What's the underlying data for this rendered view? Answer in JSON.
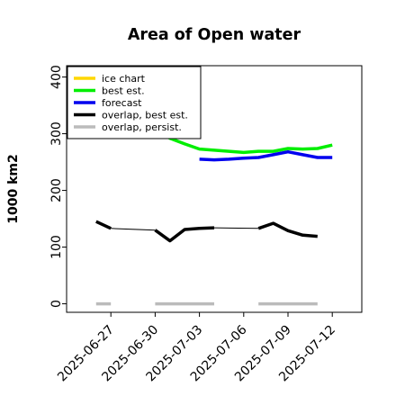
{
  "chart_data": {
    "type": "line",
    "title": "Area of Open water",
    "ylabel": "1000 km2",
    "xlabel": "",
    "ylim": [
      -15,
      420
    ],
    "xlim": [
      "2025-06-24",
      "2025-07-14"
    ],
    "yticks": [
      0,
      100,
      200,
      300,
      400
    ],
    "xticks": [
      {
        "date": "2025-06-27",
        "label": "2025-06-27",
        "color": "#000000"
      },
      {
        "date": "2025-06-30",
        "label": "2025-06-30",
        "color": "#000000"
      },
      {
        "date": "2025-07-03",
        "label": "2025-07-03",
        "color": "#228b22"
      },
      {
        "date": "2025-07-06",
        "label": "2025-07-06",
        "color": "#000000"
      },
      {
        "date": "2025-07-09",
        "label": "2025-07-09",
        "color": "#000000"
      },
      {
        "date": "2025-07-12",
        "label": "2025-07-12",
        "color": "#000000"
      }
    ],
    "legend_position": "top-left",
    "grid": false,
    "series": [
      {
        "name": "ice chart",
        "color": "#ffd700",
        "points": []
      },
      {
        "name": "best est.",
        "color": "#00ee00",
        "segments": [
          [
            {
              "x": "2025-06-30",
              "y": 305
            },
            {
              "x": "2025-07-01",
              "y": 292
            },
            {
              "x": "2025-07-02",
              "y": 282
            },
            {
              "x": "2025-07-03",
              "y": 273
            },
            {
              "x": "2025-07-04",
              "y": 271
            },
            {
              "x": "2025-07-05",
              "y": 269
            },
            {
              "x": "2025-07-06",
              "y": 267
            },
            {
              "x": "2025-07-07",
              "y": 269
            },
            {
              "x": "2025-07-08",
              "y": 269
            },
            {
              "x": "2025-07-09",
              "y": 274
            },
            {
              "x": "2025-07-10",
              "y": 273
            },
            {
              "x": "2025-07-11",
              "y": 274
            },
            {
              "x": "2025-07-12",
              "y": 280
            }
          ]
        ]
      },
      {
        "name": "forecast",
        "color": "#0000ee",
        "segments": [
          [
            {
              "x": "2025-07-03",
              "y": 255
            },
            {
              "x": "2025-07-04",
              "y": 254
            },
            {
              "x": "2025-07-05",
              "y": 255
            },
            {
              "x": "2025-07-06",
              "y": 257
            },
            {
              "x": "2025-07-07",
              "y": 258
            },
            {
              "x": "2025-07-08",
              "y": 263
            },
            {
              "x": "2025-07-09",
              "y": 268
            },
            {
              "x": "2025-07-10",
              "y": 263
            },
            {
              "x": "2025-07-11",
              "y": 258
            },
            {
              "x": "2025-07-12",
              "y": 258
            }
          ]
        ]
      },
      {
        "name": "overlap, best est.",
        "color": "#000000",
        "segments": [
          [
            {
              "x": "2025-06-26",
              "y": 145
            },
            {
              "x": "2025-06-27",
              "y": 133
            }
          ],
          [
            {
              "x": "2025-06-30",
              "y": 130
            },
            {
              "x": "2025-07-01",
              "y": 111
            },
            {
              "x": "2025-07-02",
              "y": 131
            },
            {
              "x": "2025-07-03",
              "y": 133
            },
            {
              "x": "2025-07-04",
              "y": 134
            }
          ],
          [
            {
              "x": "2025-07-07",
              "y": 133
            },
            {
              "x": "2025-07-08",
              "y": 142
            },
            {
              "x": "2025-07-09",
              "y": 129
            },
            {
              "x": "2025-07-10",
              "y": 121
            },
            {
              "x": "2025-07-11",
              "y": 119
            }
          ]
        ],
        "connectors": [
          [
            {
              "x": "2025-06-27",
              "y": 133
            },
            {
              "x": "2025-06-30",
              "y": 130
            }
          ],
          [
            {
              "x": "2025-07-04",
              "y": 134
            },
            {
              "x": "2025-07-07",
              "y": 133
            }
          ]
        ]
      },
      {
        "name": "overlap, persist.",
        "color": "#bbbbbb",
        "segments": [
          [
            {
              "x": "2025-06-26",
              "y": 0
            },
            {
              "x": "2025-06-27",
              "y": 0
            }
          ],
          [
            {
              "x": "2025-06-30",
              "y": 0
            },
            {
              "x": "2025-07-04",
              "y": 0
            }
          ],
          [
            {
              "x": "2025-07-07",
              "y": 0
            },
            {
              "x": "2025-07-11",
              "y": 0
            }
          ]
        ]
      }
    ]
  }
}
